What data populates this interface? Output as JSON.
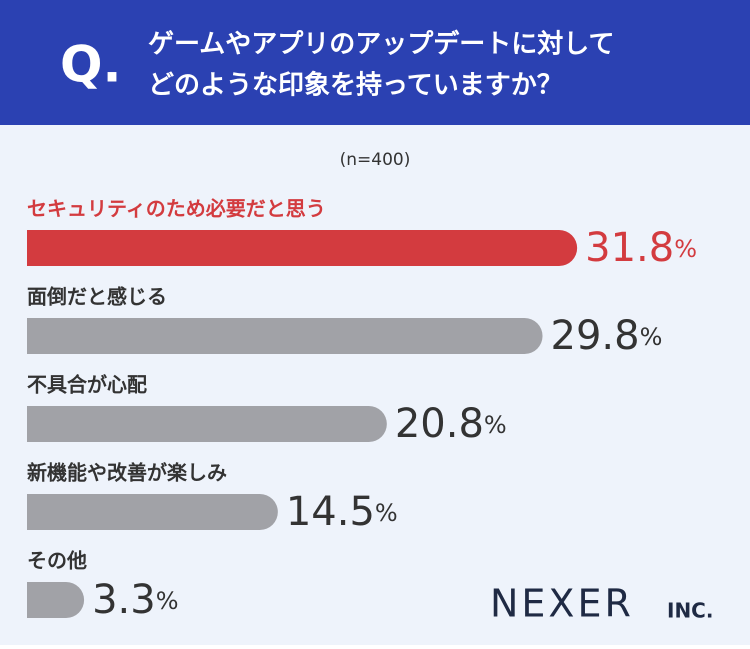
{
  "chart_data": {
    "type": "bar",
    "question_label": "Q.",
    "title": [
      "ゲームやアプリのアップデートに対して",
      "どのような印象を持っていますか？"
    ],
    "subtitle": "(n=400)",
    "categories": [
      "セキュリティのため必要だと思う",
      "面倒だと感じる",
      "不具合が心配",
      "新機能や改善が楽しみ",
      "その他"
    ],
    "values": [
      31.8,
      29.8,
      20.8,
      14.5,
      3.3
    ],
    "value_labels": [
      "31.8%",
      "29.8%",
      "20.8%",
      "14.5%",
      "3.3%"
    ],
    "colors": [
      "#d33b3f",
      "#a1a2a7",
      "#a1a2a7",
      "#a1a2a7",
      "#a1a2a7"
    ],
    "brand": "NEXER",
    "brand_suffix": "INC."
  }
}
